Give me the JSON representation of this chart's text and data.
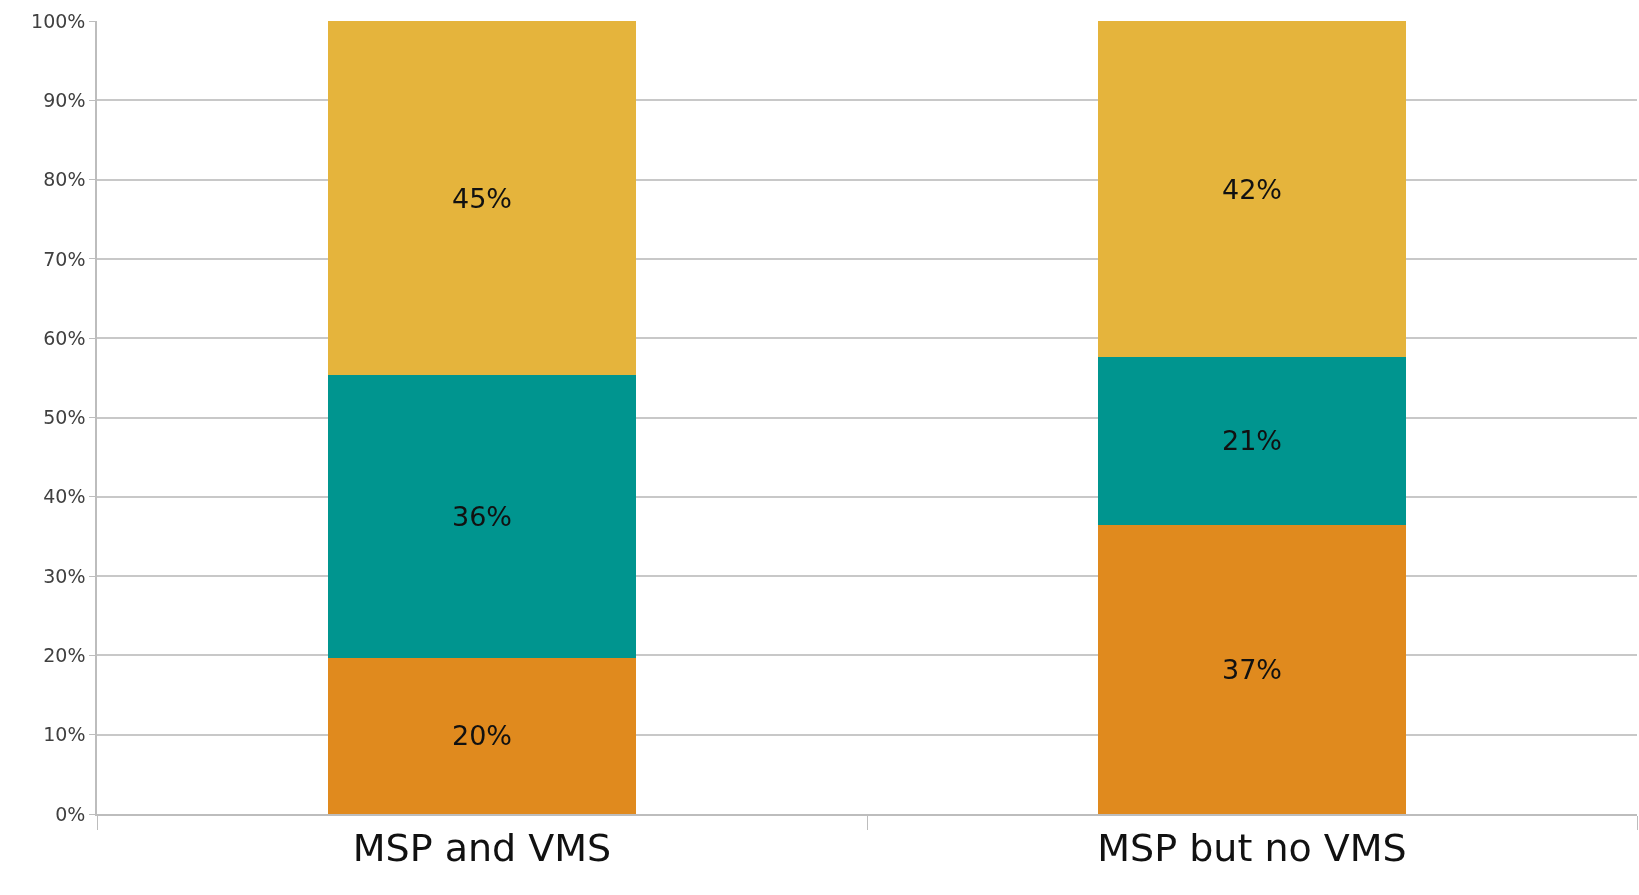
{
  "chart_data": {
    "type": "bar",
    "stacked": true,
    "categories": [
      "MSP and VMS",
      "MSP but no VMS"
    ],
    "series": [
      {
        "color": "#e08a1e",
        "values": [
          19.7,
          36.5
        ],
        "value_labels": [
          "20%",
          "37%"
        ]
      },
      {
        "color": "#00958f",
        "values": [
          35.6,
          21.1
        ],
        "value_labels": [
          "36%",
          "21%"
        ]
      },
      {
        "color": "#e5b43c",
        "values": [
          44.7,
          42.4
        ],
        "value_labels": [
          "45%",
          "42%"
        ]
      }
    ],
    "ylim": [
      0,
      100
    ],
    "yticks": [
      {
        "value": 0,
        "label": "0%"
      },
      {
        "value": 10,
        "label": "10%"
      },
      {
        "value": 20,
        "label": "20%"
      },
      {
        "value": 30,
        "label": "30%"
      },
      {
        "value": 40,
        "label": "40%"
      },
      {
        "value": 50,
        "label": "50%"
      },
      {
        "value": 60,
        "label": "60%"
      },
      {
        "value": 70,
        "label": "70%"
      },
      {
        "value": 80,
        "label": "80%"
      },
      {
        "value": 90,
        "label": "90%"
      },
      {
        "value": 100,
        "label": "100%"
      }
    ],
    "grid": "y"
  }
}
